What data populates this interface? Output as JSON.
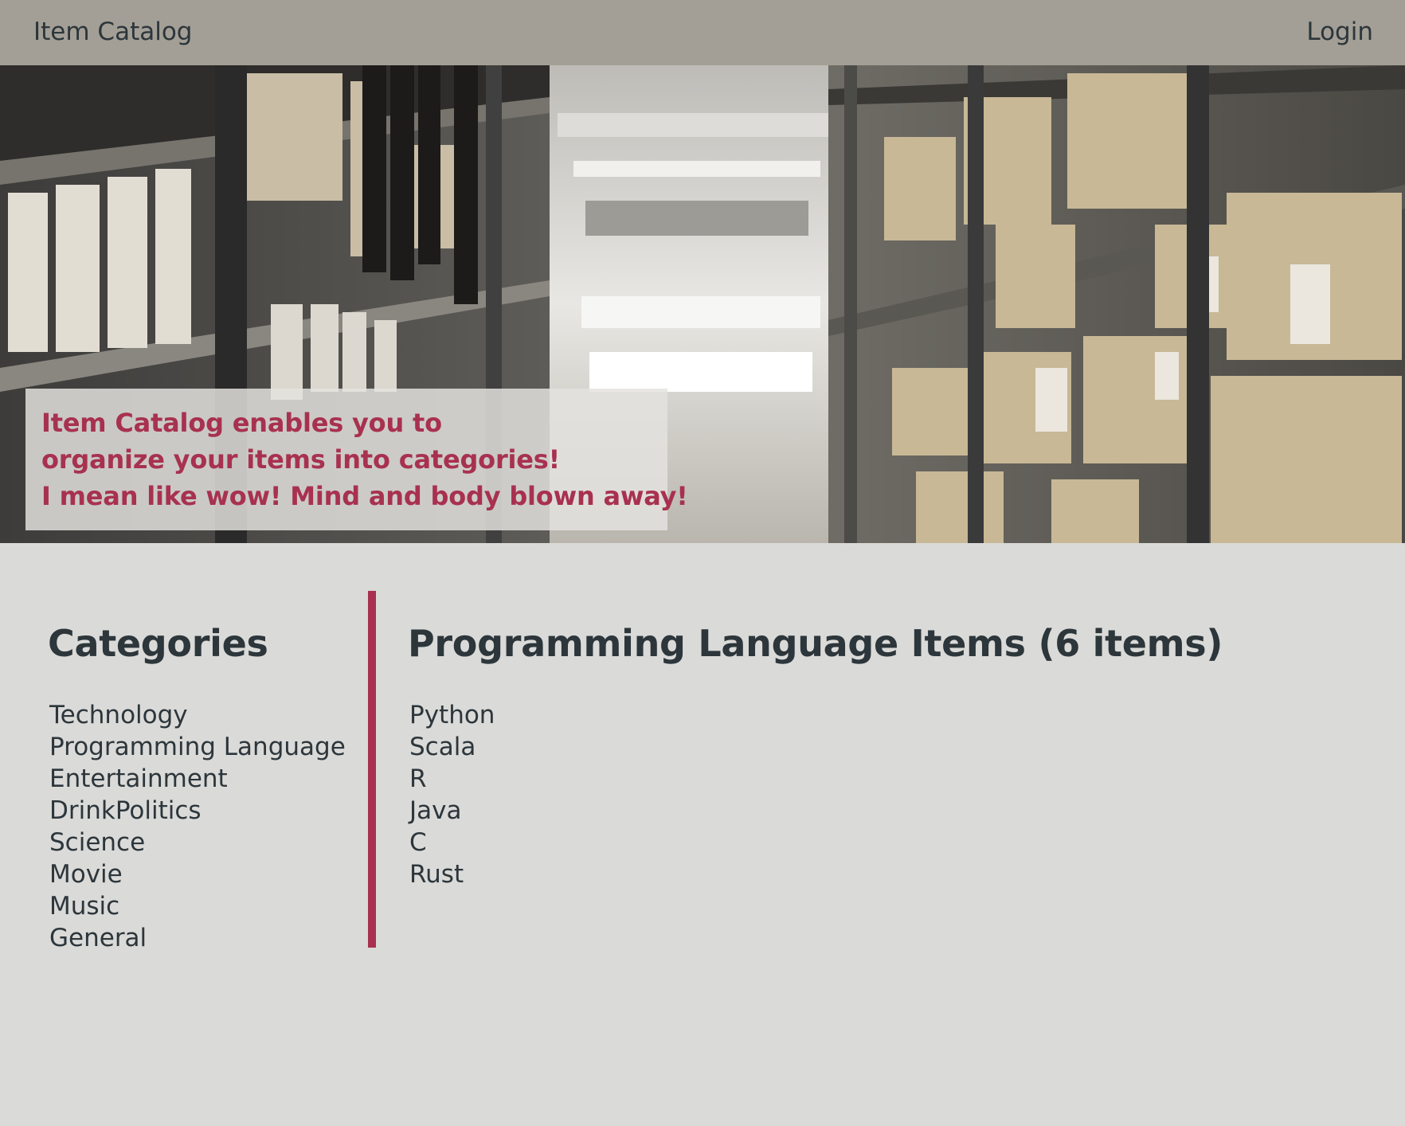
{
  "navbar": {
    "brand": "Item Catalog",
    "login_label": "Login"
  },
  "hero": {
    "lines": [
      "Item Catalog enables you to",
      "organize your items into categories!",
      "I mean like wow! Mind and body blown away!"
    ],
    "image": "warehouse-shelves-photo"
  },
  "categories": {
    "title": "Categories",
    "items": [
      "Technology",
      "Programming Language",
      "Entertainment",
      "DrinkPolitics",
      "Science",
      "Movie",
      "Music",
      "General"
    ]
  },
  "items_panel": {
    "title": "Programming Language Items (6 items)",
    "items": [
      "Python",
      "Scala",
      "R",
      "Java",
      "C",
      "Rust"
    ]
  },
  "colors": {
    "navbar_bg": "#a39f96",
    "page_bg": "#dadad8",
    "accent": "#a8314f",
    "text": "#2c363b"
  }
}
